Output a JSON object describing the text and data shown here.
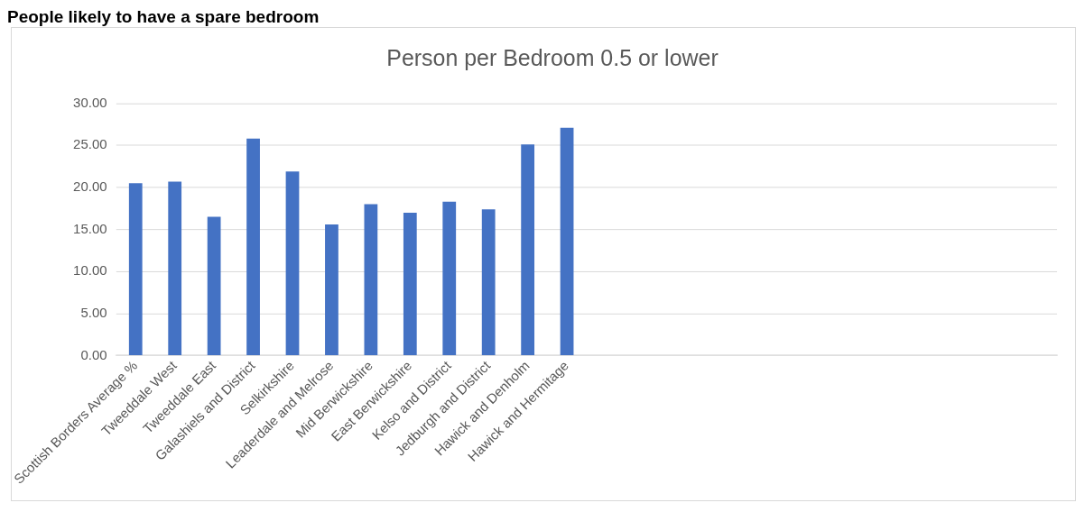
{
  "chart_data": {
    "type": "bar",
    "title": "Person per Bedroom 0.5 or lower",
    "annotations": [
      "People likely to have a spare bedroom"
    ],
    "categories": [
      "Scottish Borders Average %",
      "Tweeddale West",
      "Tweeddale East",
      "Galashiels and District",
      "Selkirkshire",
      "Leaderdale and Melrose",
      "Mid Berwickshire",
      "East Berwickshire",
      "Kelso and District",
      "Jedburgh and District",
      "Hawick and Denholm",
      "Hawick and Hermitage",
      null,
      null,
      null,
      null,
      null,
      null,
      null,
      null,
      null,
      null,
      null,
      null
    ],
    "values": [
      20.5,
      20.7,
      16.5,
      25.8,
      21.9,
      15.6,
      18.0,
      17.0,
      18.3,
      17.4,
      25.1,
      27.1,
      null,
      null,
      null,
      null,
      null,
      null,
      null,
      null,
      null,
      null,
      null,
      null
    ],
    "color": "#4472c4",
    "ylim": [
      0,
      30
    ],
    "yticks": [
      {
        "value": 0,
        "label": "0.00"
      },
      {
        "value": 5,
        "label": "5.00"
      },
      {
        "value": 10,
        "label": "10.00"
      },
      {
        "value": 15,
        "label": "15.00"
      },
      {
        "value": 20,
        "label": "20.00"
      },
      {
        "value": 25,
        "label": "25.00"
      },
      {
        "value": 30,
        "label": "30.00"
      }
    ],
    "grid": "y"
  }
}
